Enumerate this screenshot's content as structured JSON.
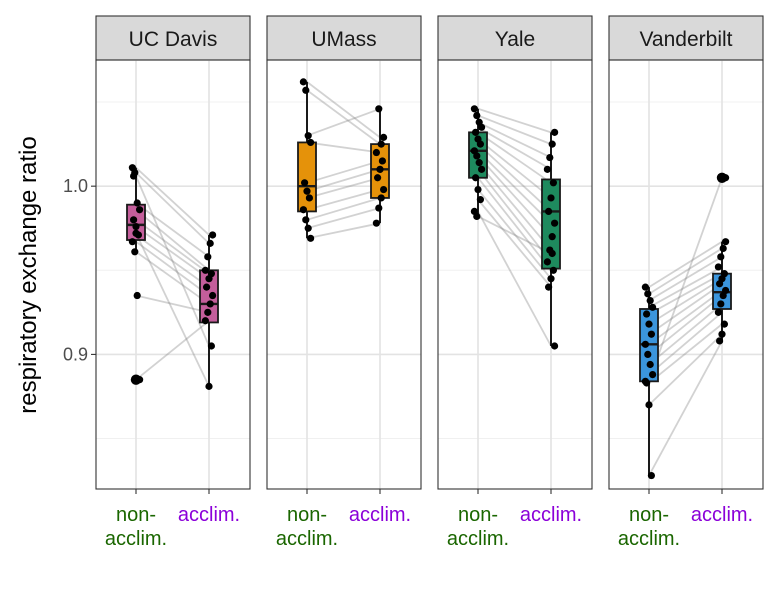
{
  "chart_data": {
    "type": "box",
    "ylabel": "respiratory exchange ratio",
    "xlabel": "",
    "ylim": [
      0.82,
      1.075
    ],
    "y_ticks": [
      0.9,
      1.0
    ],
    "y_tick_labels": [
      "0.9",
      "1.0"
    ],
    "categories": [
      "non-\nacclim.",
      "acclim."
    ],
    "category_colors": [
      "#1a6600",
      "#8b00d9"
    ],
    "grid": true,
    "paired_lines": true,
    "panels": [
      {
        "name": "UC Davis",
        "fill": "#c45e9b",
        "boxes": [
          {
            "category": "non-\nacclim.",
            "min": 0.961,
            "q1": 0.968,
            "median": 0.977,
            "q3": 0.989,
            "max": 1.011
          },
          {
            "category": "acclim.",
            "min": 0.881,
            "q1": 0.919,
            "median": 0.93,
            "q3": 0.95,
            "max": 0.971
          }
        ],
        "pairs": [
          [
            1.011,
            0.971
          ],
          [
            1.008,
            0.966
          ],
          [
            0.99,
            0.958
          ],
          [
            0.986,
            0.95
          ],
          [
            0.98,
            0.948
          ],
          [
            0.976,
            0.945
          ],
          [
            0.971,
            0.94
          ],
          [
            0.967,
            0.935
          ],
          [
            0.961,
            0.93
          ],
          [
            0.935,
            0.925
          ],
          [
            0.885,
            0.92
          ],
          [
            1.006,
            0.905
          ],
          [
            0.972,
            0.881
          ]
        ],
        "outliers": [
          0.885
        ]
      },
      {
        "name": "UMass",
        "fill": "#e5920a",
        "boxes": [
          {
            "category": "non-\nacclim.",
            "min": 0.969,
            "q1": 0.985,
            "median": 1.0,
            "q3": 1.026,
            "max": 1.062
          },
          {
            "category": "acclim.",
            "min": 0.978,
            "q1": 0.993,
            "median": 1.01,
            "q3": 1.025,
            "max": 1.046
          }
        ],
        "pairs": [
          [
            1.062,
            1.029
          ],
          [
            1.057,
            1.025
          ],
          [
            1.03,
            1.046
          ],
          [
            1.026,
            1.02
          ],
          [
            1.002,
            1.015
          ],
          [
            0.997,
            1.01
          ],
          [
            0.993,
            1.005
          ],
          [
            0.986,
            0.998
          ],
          [
            0.98,
            0.993
          ],
          [
            0.975,
            0.987
          ],
          [
            0.969,
            0.978
          ]
        ],
        "outliers": []
      },
      {
        "name": "Yale",
        "fill": "#1e8a5e",
        "boxes": [
          {
            "category": "non-\nacclim.",
            "min": 0.982,
            "q1": 1.005,
            "median": 1.021,
            "q3": 1.032,
            "max": 1.046
          },
          {
            "category": "acclim.",
            "min": 0.905,
            "q1": 0.951,
            "median": 0.985,
            "q3": 1.004,
            "max": 1.032
          }
        ],
        "pairs": [
          [
            1.046,
            1.032
          ],
          [
            1.042,
            1.025
          ],
          [
            1.038,
            1.017
          ],
          [
            1.035,
            1.01
          ],
          [
            1.032,
            1.002
          ],
          [
            1.028,
            0.993
          ],
          [
            1.025,
            0.985
          ],
          [
            1.021,
            0.978
          ],
          [
            1.018,
            0.97
          ],
          [
            1.014,
            0.962
          ],
          [
            1.01,
            0.955
          ],
          [
            1.005,
            0.95
          ],
          [
            0.998,
            0.945
          ],
          [
            0.992,
            0.94
          ],
          [
            0.985,
            0.905
          ],
          [
            0.982,
            0.96
          ]
        ],
        "outliers": []
      },
      {
        "name": "Vanderbilt",
        "fill": "#3b95dc",
        "boxes": [
          {
            "category": "non-\nacclim.",
            "min": 0.828,
            "q1": 0.884,
            "median": 0.906,
            "q3": 0.927,
            "max": 0.94
          },
          {
            "category": "acclim.",
            "min": 0.908,
            "q1": 0.927,
            "median": 0.937,
            "q3": 0.948,
            "max": 0.967
          }
        ],
        "pairs": [
          [
            0.94,
            0.967
          ],
          [
            0.936,
            0.963
          ],
          [
            0.932,
            0.958
          ],
          [
            0.928,
            0.952
          ],
          [
            0.924,
            0.948
          ],
          [
            0.918,
            0.945
          ],
          [
            0.912,
            0.942
          ],
          [
            0.906,
            0.938
          ],
          [
            0.9,
            0.935
          ],
          [
            0.894,
            0.93
          ],
          [
            0.888,
            0.925
          ],
          [
            0.883,
            0.918
          ],
          [
            0.87,
            0.912
          ],
          [
            0.828,
            0.908
          ],
          [
            0.884,
            1.005
          ]
        ],
        "outliers": [
          1.005
        ]
      }
    ]
  }
}
